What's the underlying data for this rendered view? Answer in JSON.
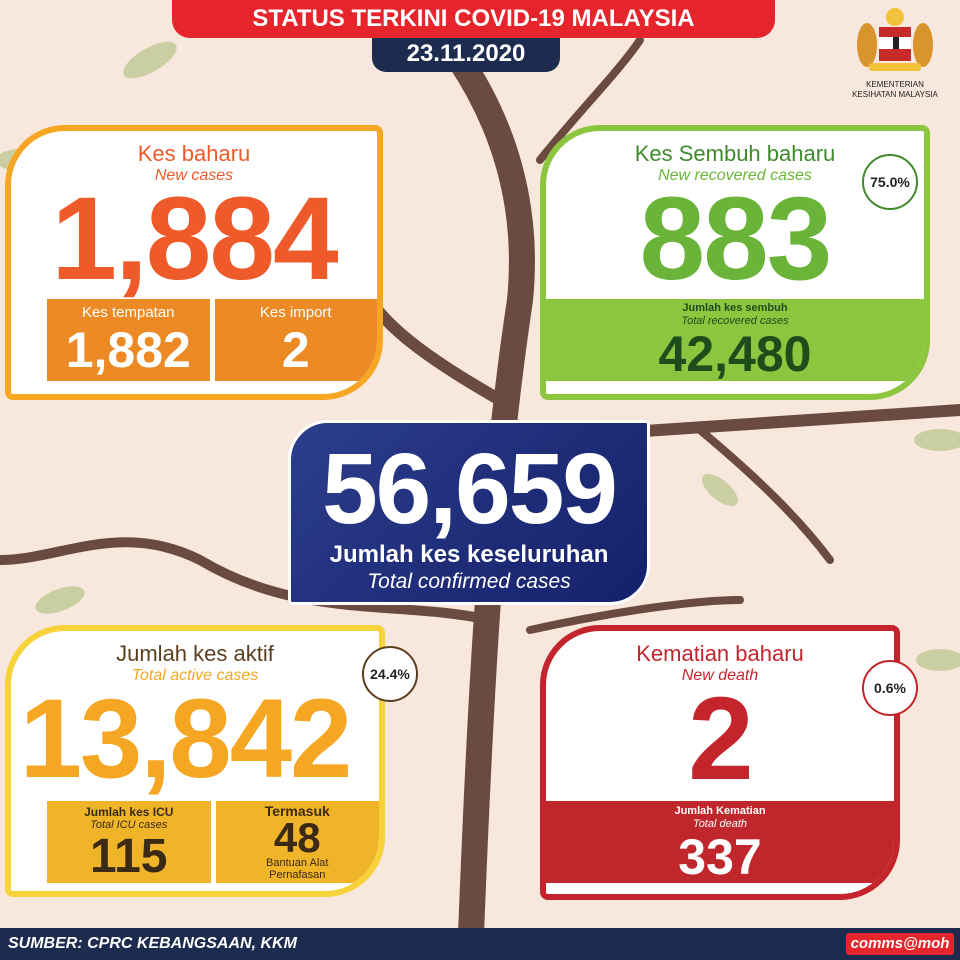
{
  "header": {
    "title": "STATUS TERKINI COVID-19 MALAYSIA",
    "date": "23.11.2020",
    "ministry": "KEMENTERIAN KESIHATAN MALAYSIA"
  },
  "new_cases": {
    "label": "Kes baharu",
    "label_en": "New cases",
    "value": "1,884",
    "local_label": "Kes tempatan",
    "local_value": "1,882",
    "import_label": "Kes import",
    "import_value": "2",
    "color": "#ee5a2a"
  },
  "recovered": {
    "label": "Kes Sembuh baharu",
    "label_en": "New recovered cases",
    "value": "883",
    "percent": "75.0%",
    "total_label": "Jumlah kes sembuh",
    "total_label_en": "Total recovered cases",
    "total_value": "42,480",
    "color": "#6ab539"
  },
  "total": {
    "value": "56,659",
    "label": "Jumlah kes keseluruhan",
    "label_en": "Total confirmed cases"
  },
  "active": {
    "label": "Jumlah kes aktif",
    "label_en": "Total active cases",
    "value": "13,842",
    "percent": "24.4%",
    "icu_label": "Jumlah kes ICU",
    "icu_label_en": "Total ICU cases",
    "icu_value": "115",
    "vent_prefix": "Termasuk",
    "vent_value": "48",
    "vent_suffix1": "Bantuan Alat",
    "vent_suffix2": "Pernafasan",
    "color": "#f5a623"
  },
  "death": {
    "label": "Kematian baharu",
    "label_en": "New death",
    "value": "2",
    "percent": "0.6%",
    "total_label": "Jumlah Kematian",
    "total_label_en": "Total death",
    "total_value": "337",
    "color": "#c4252d"
  },
  "footer": {
    "source": "SUMBER: CPRC KEBANGSAAN, KKM",
    "handle": "comms@moh"
  }
}
